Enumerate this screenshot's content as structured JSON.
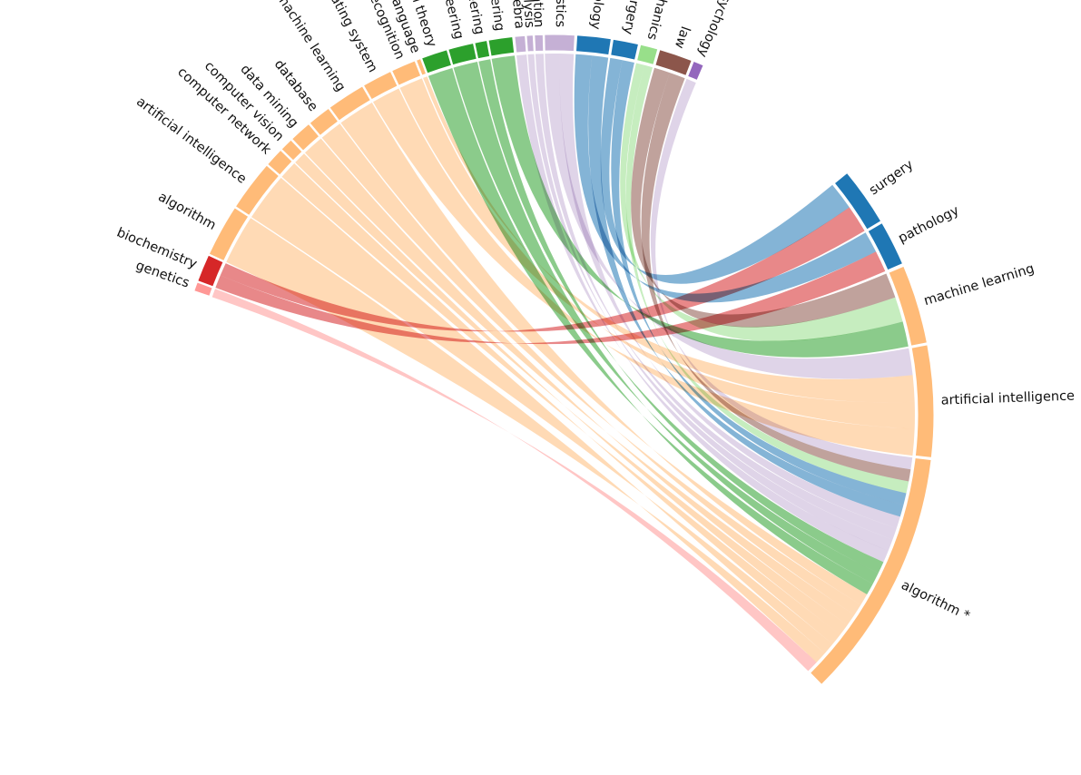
{
  "left_nodes": [
    {
      "id": "social-psychology",
      "label": "social psychology",
      "color": "#9467bd"
    },
    {
      "id": "law",
      "label": "law",
      "color": "#8c564b"
    },
    {
      "id": "quantum-mechanics",
      "label": "quantum mechanics",
      "color": "#98df8a"
    },
    {
      "id": "surgery",
      "label": "surgery",
      "color": "#1f77b4"
    },
    {
      "id": "pathology",
      "label": "pathology",
      "color": "#1f77b4"
    },
    {
      "id": "statistics",
      "label": "statistics",
      "color": "#c5b0d5"
    },
    {
      "id": "mathematical-optimization",
      "label": "mathematical optimization",
      "color": "#c5b0d5"
    },
    {
      "id": "mathematical-analysis",
      "label": "mathematical analysis",
      "color": "#c5b0d5"
    },
    {
      "id": "algebra",
      "label": "algebra",
      "color": "#c5b0d5"
    },
    {
      "id": "mechanical-engineering",
      "label": "mechanical engineering",
      "color": "#2ca02c"
    },
    {
      "id": "electronic-engineering",
      "label": "electronic engineering",
      "color": "#2ca02c"
    },
    {
      "id": "electrical-engineering",
      "label": "electrical engineering",
      "color": "#2ca02c"
    },
    {
      "id": "control-theory",
      "label": "control theory",
      "color": "#2ca02c"
    },
    {
      "id": "programming-language",
      "label": "programming language",
      "color": "#ffbb78"
    },
    {
      "id": "pattern-recognition",
      "label": "pattern recognition",
      "color": "#ffbb78"
    },
    {
      "id": "operating-system",
      "label": "operating system",
      "color": "#ffbb78"
    },
    {
      "id": "machine-learning",
      "label": "machine learning",
      "color": "#ffbb78"
    },
    {
      "id": "database",
      "label": "database",
      "color": "#ffbb78"
    },
    {
      "id": "data-mining",
      "label": "data mining",
      "color": "#ffbb78"
    },
    {
      "id": "computer-vision",
      "label": "computer vision",
      "color": "#ffbb78"
    },
    {
      "id": "computer-network",
      "label": "computer network",
      "color": "#ffbb78"
    },
    {
      "id": "artificial-intelligence",
      "label": "artificial intelligence",
      "color": "#ffbb78"
    },
    {
      "id": "algorithm",
      "label": "algorithm",
      "color": "#ffbb78"
    },
    {
      "id": "biochemistry",
      "label": "biochemistry",
      "color": "#d62728"
    },
    {
      "id": "genetics",
      "label": "genetics",
      "color": "#ff9896"
    }
  ],
  "right_nodes": [
    {
      "id": "surgery-r",
      "label": "surgery",
      "color": "#1f77b4"
    },
    {
      "id": "pathology-r",
      "label": "pathology",
      "color": "#1f77b4"
    },
    {
      "id": "machine-learning-r",
      "label": "machine learning",
      "color": "#ffbb78"
    },
    {
      "id": "artificial-intelligence-r",
      "label": "artificial intelligence",
      "color": "#ffbb78"
    },
    {
      "id": "algorithm-r",
      "label": "algorithm *",
      "color": "#ffbb78"
    }
  ],
  "ribbons": [
    {
      "from": "social-psychology",
      "to": "algorithm-r",
      "color": "#c5b0d5"
    },
    {
      "from": "law",
      "to": "algorithm-r",
      "color": "#8c564b"
    },
    {
      "from": "law",
      "to": "machine-learning-r",
      "color": "#8c564b"
    },
    {
      "from": "quantum-mechanics",
      "to": "algorithm-r",
      "color": "#98df8a"
    },
    {
      "from": "quantum-mechanics",
      "to": "machine-learning-r",
      "color": "#98df8a"
    },
    {
      "from": "surgery",
      "to": "algorithm-r",
      "color": "#1f77b4"
    },
    {
      "from": "surgery",
      "to": "surgery-r",
      "color": "#1f77b4"
    },
    {
      "from": "pathology",
      "to": "algorithm-r",
      "color": "#1f77b4"
    },
    {
      "from": "pathology",
      "to": "pathology-r",
      "color": "#1f77b4"
    },
    {
      "from": "statistics",
      "to": "algorithm-r",
      "color": "#c5b0d5"
    },
    {
      "from": "statistics",
      "to": "artificial-intelligence-r",
      "color": "#c5b0d5"
    },
    {
      "from": "mathematical-optimization",
      "to": "algorithm-r",
      "color": "#c5b0d5"
    },
    {
      "from": "mathematical-analysis",
      "to": "algorithm-r",
      "color": "#c5b0d5"
    },
    {
      "from": "algebra",
      "to": "algorithm-r",
      "color": "#c5b0d5"
    },
    {
      "from": "mechanical-engineering",
      "to": "machine-learning-r",
      "color": "#2ca02c"
    },
    {
      "from": "electronic-engineering",
      "to": "algorithm-r",
      "color": "#2ca02c"
    },
    {
      "from": "electrical-engineering",
      "to": "algorithm-r",
      "color": "#2ca02c"
    },
    {
      "from": "control-theory",
      "to": "algorithm-r",
      "color": "#2ca02c"
    },
    {
      "from": "programming-language",
      "to": "artificial-intelligence-r",
      "color": "#ffbb78"
    },
    {
      "from": "pattern-recognition",
      "to": "artificial-intelligence-r",
      "color": "#ffbb78"
    },
    {
      "from": "operating-system",
      "to": "artificial-intelligence-r",
      "color": "#ffbb78"
    },
    {
      "from": "machine-learning",
      "to": "algorithm-r",
      "color": "#ffbb78"
    },
    {
      "from": "database",
      "to": "algorithm-r",
      "color": "#ffbb78"
    },
    {
      "from": "data-mining",
      "to": "algorithm-r",
      "color": "#ffbb78"
    },
    {
      "from": "computer-vision",
      "to": "algorithm-r",
      "color": "#ffbb78"
    },
    {
      "from": "computer-network",
      "to": "algorithm-r",
      "color": "#ffbb78"
    },
    {
      "from": "artificial-intelligence",
      "to": "algorithm-r",
      "color": "#ffbb78"
    },
    {
      "from": "algorithm",
      "to": "algorithm-r",
      "color": "#ffbb78"
    },
    {
      "from": "biochemistry",
      "to": "surgery-r",
      "color": "#d62728"
    },
    {
      "from": "biochemistry",
      "to": "pathology-r",
      "color": "#d62728"
    },
    {
      "from": "genetics",
      "to": "algorithm-r",
      "color": "#ff9896"
    }
  ]
}
